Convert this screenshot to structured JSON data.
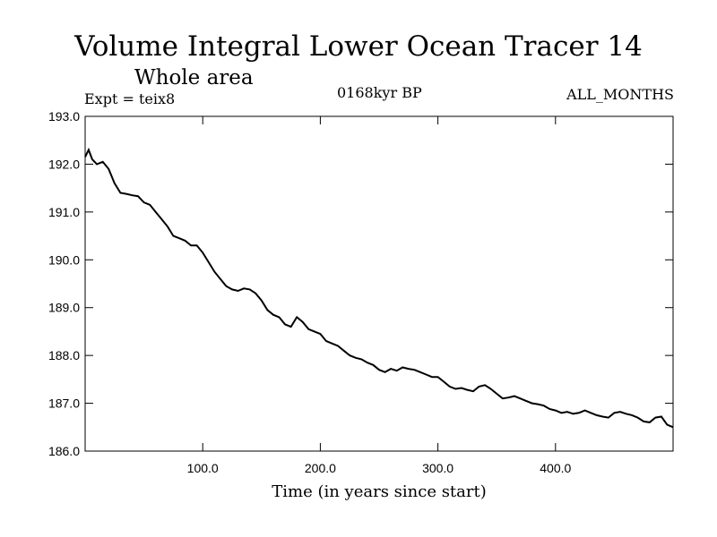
{
  "header": {
    "title": "Volume Integral Lower Ocean Tracer 14",
    "subtitle": "Whole area",
    "experiment": "Expt = teix8",
    "period": "0168kyr BP",
    "months": "ALL_MONTHS"
  },
  "chart_data": {
    "type": "line",
    "title": "Volume Integral Lower Ocean Tracer 14",
    "xlabel": "Time (in years since start)",
    "ylabel": "",
    "xlim": [
      0,
      500
    ],
    "ylim": [
      186.0,
      193.0
    ],
    "xticks": [
      100,
      200,
      300,
      400
    ],
    "xtick_labels": [
      "100.0",
      "200.0",
      "300.0",
      "400.0"
    ],
    "yticks": [
      186,
      187,
      188,
      189,
      190,
      191,
      192,
      193
    ],
    "ytick_labels": [
      "186.0",
      "187.0",
      "188.0",
      "189.0",
      "190.0",
      "191.0",
      "192.0",
      "193.0"
    ],
    "grid": false,
    "line_color": "#000000",
    "series": [
      {
        "x": [
          0,
          3,
          6,
          10,
          15,
          20,
          25,
          30,
          35,
          40,
          45,
          50,
          55,
          60,
          65,
          70,
          75,
          80,
          85,
          90,
          95,
          100,
          105,
          110,
          115,
          120,
          125,
          130,
          135,
          140,
          145,
          150,
          155,
          160,
          165,
          170,
          175,
          180,
          185,
          190,
          195,
          200,
          205,
          210,
          215,
          220,
          225,
          230,
          235,
          240,
          245,
          250,
          255,
          260,
          265,
          270,
          275,
          280,
          285,
          290,
          295,
          300,
          305,
          310,
          315,
          320,
          325,
          330,
          335,
          340,
          345,
          350,
          355,
          360,
          365,
          370,
          375,
          380,
          385,
          390,
          395,
          400,
          405,
          410,
          415,
          420,
          425,
          430,
          435,
          440,
          445,
          450,
          455,
          460,
          465,
          470,
          475,
          480,
          485,
          490,
          495,
          500
        ],
        "y": [
          192.15,
          192.3,
          192.1,
          192.0,
          192.05,
          191.9,
          191.6,
          191.4,
          191.38,
          191.35,
          191.33,
          191.2,
          191.15,
          191.0,
          190.85,
          190.7,
          190.5,
          190.45,
          190.4,
          190.3,
          190.3,
          190.15,
          189.95,
          189.75,
          189.6,
          189.45,
          189.38,
          189.35,
          189.4,
          189.38,
          189.3,
          189.15,
          188.95,
          188.85,
          188.8,
          188.65,
          188.6,
          188.8,
          188.7,
          188.55,
          188.5,
          188.45,
          188.3,
          188.25,
          188.2,
          188.1,
          188.0,
          187.95,
          187.92,
          187.85,
          187.8,
          187.7,
          187.65,
          187.72,
          187.68,
          187.75,
          187.72,
          187.7,
          187.65,
          187.6,
          187.55,
          187.55,
          187.45,
          187.35,
          187.3,
          187.32,
          187.28,
          187.25,
          187.35,
          187.38,
          187.3,
          187.2,
          187.1,
          187.12,
          187.15,
          187.1,
          187.05,
          187.0,
          186.98,
          186.95,
          186.88,
          186.85,
          186.8,
          186.82,
          186.78,
          186.8,
          186.85,
          186.8,
          186.75,
          186.72,
          186.7,
          186.8,
          186.82,
          186.78,
          186.75,
          186.7,
          186.62,
          186.6,
          186.7,
          186.72,
          186.55,
          186.5
        ]
      }
    ]
  }
}
